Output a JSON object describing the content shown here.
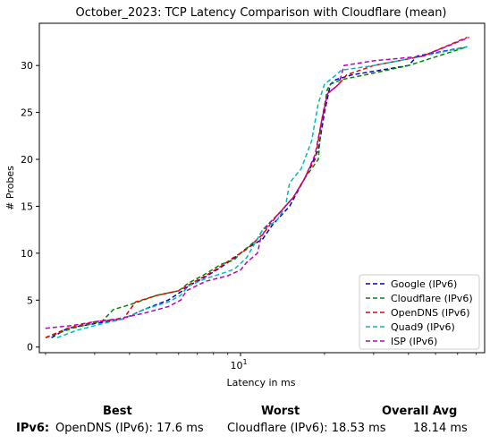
{
  "chart_data": {
    "type": "line",
    "title": "October_2023: TCP Latency Comparison with Cloudflare (mean)",
    "xlabel": "Latency in ms",
    "ylabel": "# Probes",
    "xscale": "log",
    "xlim": [
      1.9,
      75
    ],
    "ylim": [
      -0.6,
      34.5
    ],
    "x_ticks": [
      {
        "value": 10,
        "label": "10^1"
      }
    ],
    "y_ticks": [
      0,
      5,
      10,
      15,
      20,
      25,
      30
    ],
    "grid": false,
    "legend": "bottom-right",
    "line_style": "dashed",
    "series": [
      {
        "name": "Google (IPv6)",
        "color": "#0000cc",
        "x": [
          2.1,
          2.4,
          3.0,
          3.8,
          4.5,
          5.5,
          6.2,
          6.5,
          7.5,
          8.5,
          9.5,
          10.5,
          12.0,
          13.0,
          15.0,
          17.0,
          19.0,
          20.0,
          21.0,
          22.0,
          25.0,
          40.0,
          43.0,
          65.0
        ],
        "y": [
          1,
          2,
          2.5,
          3,
          4,
          5,
          6,
          6.5,
          7.5,
          8.5,
          9.5,
          10.5,
          11.5,
          13,
          15,
          18,
          21,
          25,
          28,
          28.5,
          29,
          30,
          31,
          32
        ]
      },
      {
        "name": "Cloudflare (IPv6)",
        "color": "#008800",
        "x": [
          2.0,
          2.5,
          3.2,
          3.5,
          4.0,
          5.0,
          6.0,
          6.5,
          7.5,
          8.5,
          9.5,
          10.0,
          11.5,
          12.0,
          13.5,
          15.5,
          17.0,
          19.0,
          19.5,
          20.5,
          21.0,
          23.0,
          28.0,
          40.0,
          65.0
        ],
        "y": [
          1,
          2,
          2.8,
          4,
          4.5,
          5.5,
          6,
          6.8,
          7.8,
          8.8,
          9.3,
          10,
          11.5,
          12.5,
          14,
          16,
          18,
          20,
          24,
          27.5,
          28,
          28.5,
          29,
          30,
          32
        ]
      },
      {
        "name": "OpenDNS (IPv6)",
        "color": "#ee0000",
        "x": [
          2.0,
          2.4,
          3.0,
          3.8,
          4.2,
          5.0,
          6.0,
          6.5,
          7.5,
          8.5,
          9.5,
          10.5,
          12.0,
          13.5,
          15.5,
          17.0,
          18.5,
          19.5,
          20.5,
          21.5,
          22.5,
          24.0,
          30.0,
          45.0,
          65.0
        ],
        "y": [
          1,
          2,
          2.7,
          3,
          4.8,
          5.5,
          6,
          6.6,
          7.6,
          8.6,
          9.6,
          10.4,
          12,
          14,
          16,
          18,
          20,
          24,
          27,
          27.5,
          28,
          29,
          30,
          31,
          33
        ]
      },
      {
        "name": "Quad9 (IPv6)",
        "color": "#00bbbb",
        "x": [
          2.2,
          2.6,
          3.2,
          3.8,
          4.5,
          5.5,
          6.1,
          6.5,
          7.5,
          8.5,
          9.5,
          10.5,
          12.0,
          13.5,
          14.5,
          15.0,
          16.5,
          18.0,
          19.0,
          20.0,
          21.0,
          23.0,
          30.0,
          45.0,
          65.0
        ],
        "y": [
          1,
          1.8,
          2.5,
          3,
          4,
          4.8,
          5.5,
          6.5,
          7.3,
          7.8,
          8.3,
          9.5,
          12.5,
          13.5,
          15,
          17.5,
          19,
          22,
          26,
          28,
          28.5,
          29.5,
          30,
          31,
          32
        ]
      },
      {
        "name": "ISP (IPv6)",
        "color": "#bb00bb",
        "x": [
          2.0,
          2.5,
          3.0,
          3.6,
          4.5,
          5.5,
          6.1,
          6.4,
          7.5,
          9.0,
          10.0,
          10.5,
          11.5,
          11.8,
          12.5,
          14.0,
          15.5,
          17.0,
          18.5,
          19.5,
          20.5,
          22.5,
          23.5,
          30.0,
          45.0,
          66.0
        ],
        "y": [
          2,
          2.3,
          2.7,
          3,
          3.6,
          4.3,
          5,
          6,
          7,
          7.6,
          8.2,
          9,
          10,
          11.5,
          13,
          14.5,
          16,
          18,
          20.5,
          24,
          27,
          28,
          30,
          30.5,
          31,
          33
        ]
      }
    ]
  },
  "summary": {
    "headers": {
      "best": "Best",
      "worst": "Worst",
      "overall": "Overall Avg"
    },
    "row_label": "IPv6",
    "best": "OpenDNS (IPv6): 17.6 ms",
    "worst": "Cloudflare (IPv6): 18.53 ms",
    "overall": "18.14 ms"
  }
}
